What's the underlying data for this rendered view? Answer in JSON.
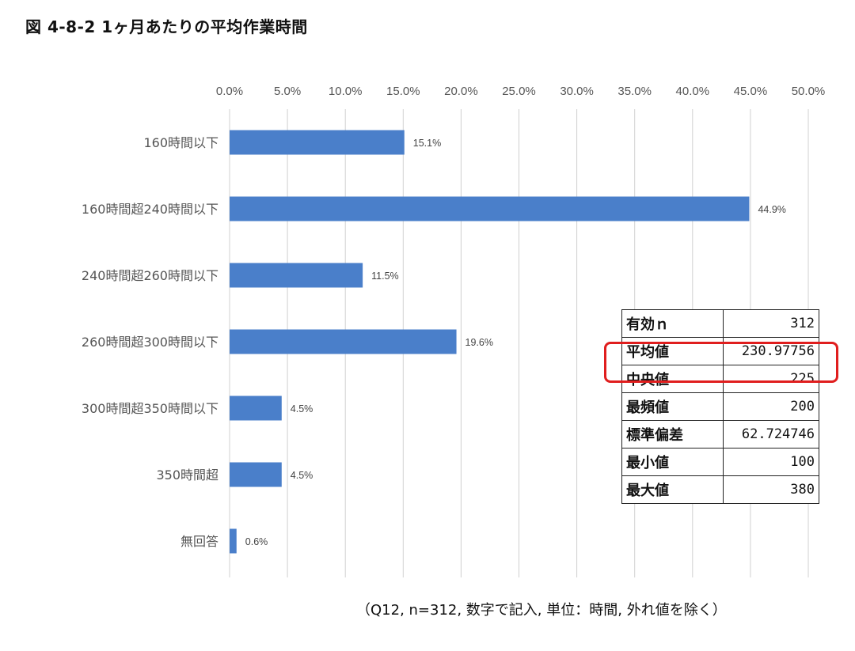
{
  "figure_title": "図 4-8-2 1ヶ月あたりの平均作業時間",
  "footnote": "（Q12, n=312, 数字で記入, 単位：時間, 外れ値を除く）",
  "chart_data": {
    "type": "bar",
    "orientation": "horizontal",
    "categories": [
      "160時間以下",
      "160時間超240時間以下",
      "240時間超260時間以下",
      "260時間超300時間以下",
      "300時間超350時間以下",
      "350時間超",
      "無回答"
    ],
    "values": [
      15.1,
      44.9,
      11.5,
      19.6,
      4.5,
      4.5,
      0.6
    ],
    "data_labels": [
      "15.1%",
      "44.9%",
      "11.5%",
      "19.6%",
      "4.5%",
      "4.5%",
      "0.6%"
    ],
    "x_ticks": [
      "0.0%",
      "5.0%",
      "10.0%",
      "15.0%",
      "20.0%",
      "25.0%",
      "30.0%",
      "35.0%",
      "40.0%",
      "45.0%",
      "50.0%"
    ],
    "xlim": [
      0,
      50
    ],
    "x_axis_position": "top",
    "grid": "vertical",
    "bar_color": "#4a7fca"
  },
  "stats_table": {
    "rows": [
      {
        "label": "有効ｎ",
        "value": "312"
      },
      {
        "label": "平均値",
        "value": "230.97756"
      },
      {
        "label": "中央値",
        "value": "225"
      },
      {
        "label": "最頻値",
        "value": "200"
      },
      {
        "label": "標準偏差",
        "value": "62.724746"
      },
      {
        "label": "最小値",
        "value": "100"
      },
      {
        "label": "最大値",
        "value": "380"
      }
    ],
    "highlighted_row": "平均値",
    "highlight_color": "#e01e1e"
  }
}
